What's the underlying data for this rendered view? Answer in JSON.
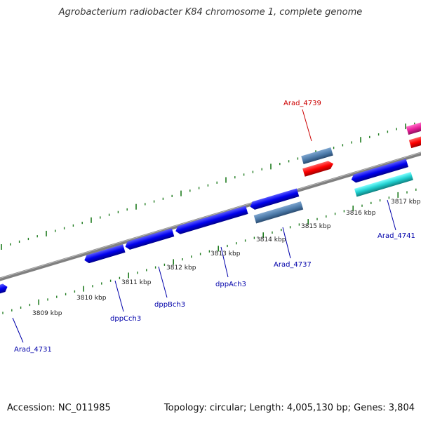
{
  "title": "Agrobacterium radiobacter K84 chromosome 1, complete genome",
  "footer": {
    "accession": "Accession: NC_011985",
    "summary": "Topology: circular; Length: 4,005,130 bp; Genes: 3,804"
  },
  "ticks": [
    "3809 kbp",
    "3810 kbp",
    "3811 kbp",
    "3812 kbp",
    "3813 kbp",
    "3814 kbp",
    "3815 kbp",
    "3816 kbp",
    "3817 kbp"
  ],
  "genes": [
    {
      "name": "Arad_4739",
      "color": "#cc0000"
    },
    {
      "name": "Arad_4741",
      "color": "#0000aa"
    },
    {
      "name": "Arad_4737",
      "color": "#0000aa"
    },
    {
      "name": "dppAch3",
      "color": "#0000aa"
    },
    {
      "name": "dppBch3",
      "color": "#0000aa"
    },
    {
      "name": "dppCch3",
      "color": "#0000aa"
    },
    {
      "name": "Arad_4731",
      "color": "#0000aa"
    }
  ],
  "colors": {
    "backbone": "#808080",
    "tick": "#1e7b1e",
    "cds_forward": "#0000ee",
    "cds_steelblue": "#4b79a8",
    "cds_red": "#ff0000",
    "cds_cyan": "#20d0d0",
    "cds_magenta": "#e8209a"
  }
}
